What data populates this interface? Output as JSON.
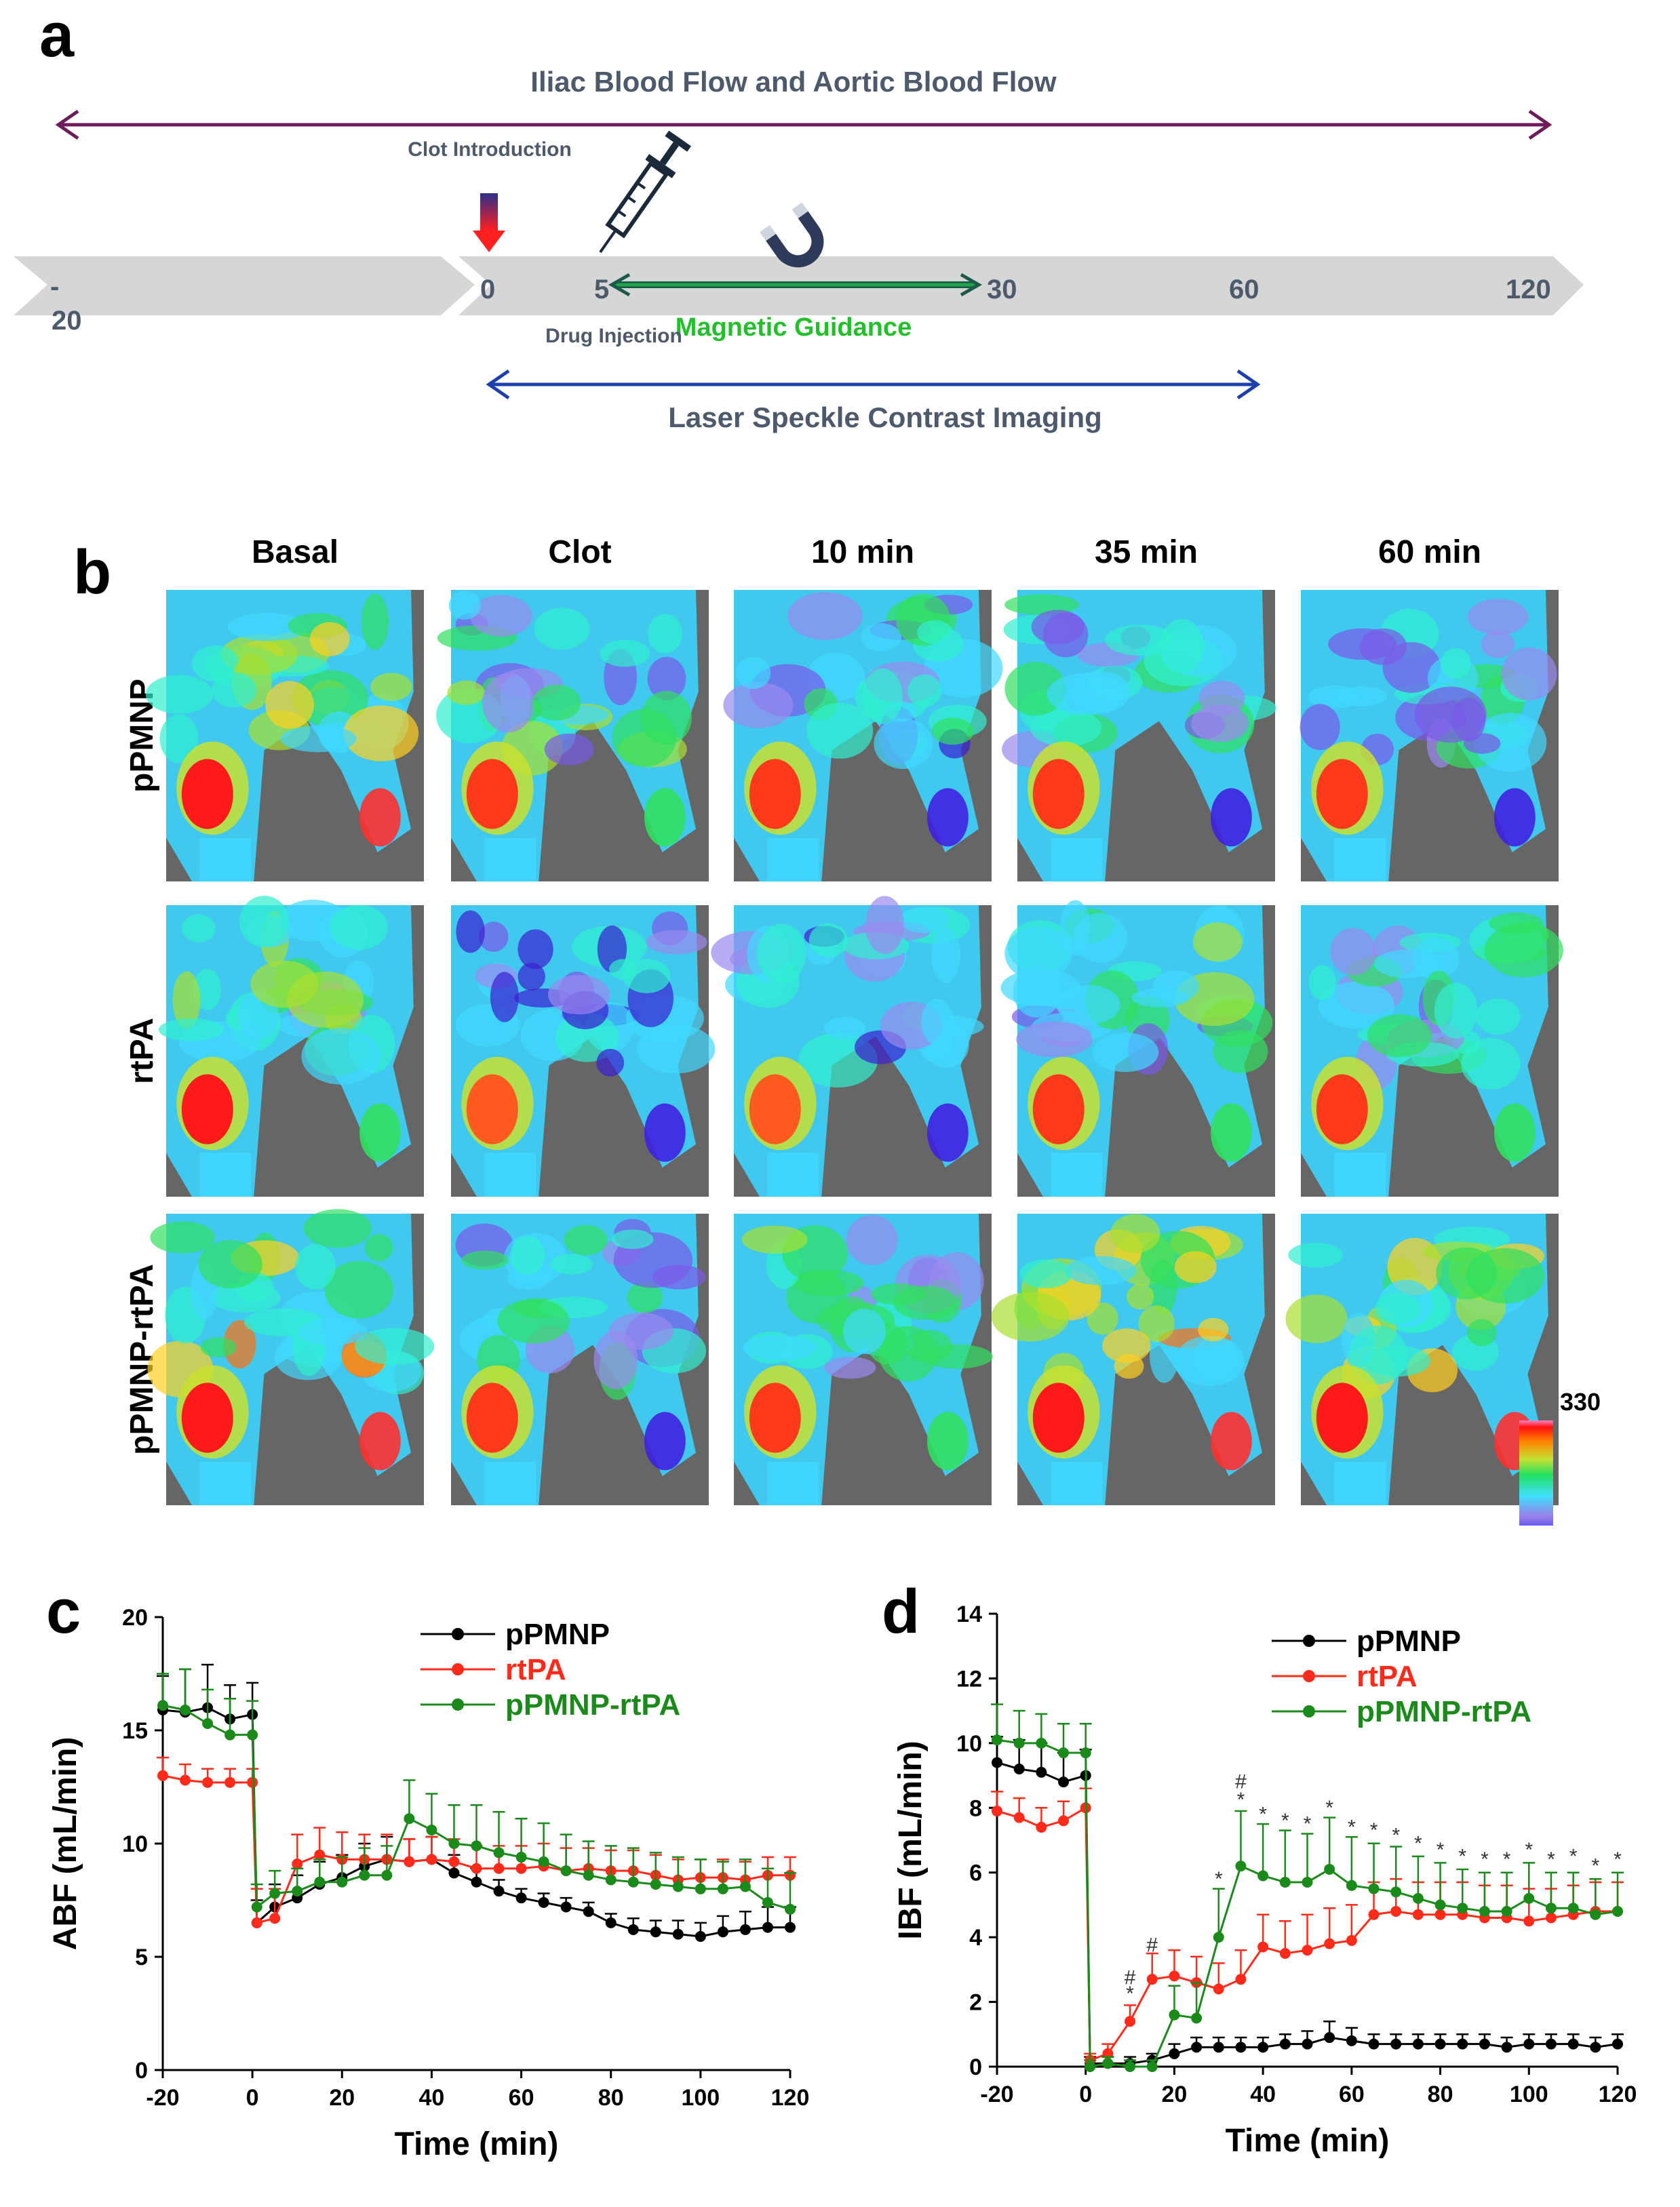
{
  "panels": {
    "a": "a",
    "b": "b",
    "c": "c",
    "d": "d"
  },
  "timeline": {
    "top_span_label": "Iliac Blood Flow and Aortic Blood Flow",
    "clot_label": "Clot Introduction",
    "drug_label": "Drug Injection",
    "magnet_label": "Magnetic Guidance",
    "lsci_label": "Laser Speckle Contrast Imaging",
    "ticks": [
      "-",
      "20",
      "0",
      "5",
      "30",
      "60",
      "120"
    ],
    "colors": {
      "top_arrow": "#6d1b5a",
      "lsci_arrow": "#1c3fae",
      "magnet_arrow": "#22a34a",
      "label": "#4d5a6b",
      "bar": "#d6d6d6"
    }
  },
  "imaging": {
    "columns": [
      "Basal",
      "Clot",
      "10 min",
      "35 min",
      "60 min"
    ],
    "rows": [
      "pPMNP",
      "rtPA",
      "pPMNP-rtPA"
    ],
    "colorbar": {
      "max": "330",
      "min": "0"
    },
    "perfusion_levels": [
      [
        0.85,
        0.55,
        0.45,
        0.5,
        0.5
      ],
      [
        0.7,
        0.3,
        0.35,
        0.55,
        0.6
      ],
      [
        0.9,
        0.5,
        0.55,
        0.85,
        0.85
      ]
    ]
  },
  "chart_data": [
    {
      "type": "line",
      "panel": "c",
      "xlabel": "Time (min)",
      "ylabel": "ABF (mL/min)",
      "xlim": [
        -20,
        120
      ],
      "ylim": [
        0,
        20
      ],
      "xticks": [
        -20,
        0,
        20,
        40,
        60,
        80,
        100,
        120
      ],
      "yticks": [
        0,
        5,
        10,
        15,
        20
      ],
      "x": [
        -20,
        -15,
        -10,
        -5,
        0,
        1,
        5,
        10,
        15,
        20,
        25,
        30,
        35,
        40,
        45,
        50,
        55,
        60,
        65,
        70,
        75,
        80,
        85,
        90,
        95,
        100,
        105,
        110,
        115,
        120
      ],
      "series": [
        {
          "name": "pPMNP",
          "color": "#000000",
          "values": [
            15.9,
            15.8,
            16.0,
            15.5,
            15.7,
            6.5,
            7.2,
            7.6,
            8.2,
            8.5,
            9.0,
            9.3,
            9.2,
            9.3,
            8.7,
            8.3,
            7.9,
            7.6,
            7.4,
            7.2,
            7.0,
            6.5,
            6.2,
            6.1,
            6.0,
            5.9,
            6.1,
            6.2,
            6.3,
            6.3
          ],
          "errors": [
            1.5,
            1.9,
            1.9,
            1.5,
            1.4,
            1.0,
            1.0,
            1.0,
            1.0,
            1.0,
            1.0,
            1.0,
            1.0,
            1.0,
            0.8,
            0.6,
            0.5,
            0.4,
            0.4,
            0.4,
            0.4,
            0.4,
            0.5,
            0.5,
            0.6,
            0.6,
            0.7,
            0.8,
            0.9,
            0.9
          ]
        },
        {
          "name": "rtPA",
          "color": "#ff2a1a",
          "values": [
            13.0,
            12.8,
            12.7,
            12.7,
            12.7,
            6.5,
            6.7,
            9.1,
            9.5,
            9.3,
            9.3,
            9.3,
            9.2,
            9.3,
            9.2,
            8.9,
            8.9,
            8.9,
            9.0,
            8.8,
            8.9,
            8.8,
            8.8,
            8.6,
            8.4,
            8.5,
            8.5,
            8.4,
            8.6,
            8.6
          ],
          "errors": [
            0.8,
            0.7,
            0.6,
            0.6,
            0.6,
            1.5,
            1.3,
            1.3,
            1.2,
            1.2,
            1.1,
            1.1,
            1.0,
            1.0,
            1.0,
            1.0,
            1.0,
            1.0,
            1.0,
            1.0,
            0.9,
            0.9,
            0.9,
            0.9,
            0.9,
            0.8,
            0.8,
            0.8,
            0.8,
            0.8
          ]
        },
        {
          "name": "pPMNP-rtPA",
          "color": "#1a8a1a",
          "values": [
            16.1,
            15.9,
            15.3,
            14.8,
            14.8,
            7.2,
            7.8,
            7.9,
            8.3,
            8.3,
            8.6,
            8.6,
            11.1,
            10.6,
            10.0,
            9.9,
            9.6,
            9.4,
            9.2,
            8.8,
            8.6,
            8.4,
            8.3,
            8.2,
            8.1,
            8.0,
            8.0,
            8.1,
            7.4,
            7.1
          ],
          "errors": [
            1.4,
            1.8,
            1.5,
            1.6,
            1.5,
            1.0,
            1.0,
            1.0,
            1.0,
            1.1,
            1.2,
            1.3,
            1.7,
            1.6,
            1.7,
            1.8,
            1.8,
            1.7,
            1.7,
            1.6,
            1.5,
            1.5,
            1.5,
            1.4,
            1.3,
            1.3,
            1.2,
            1.2,
            1.5,
            1.6
          ]
        }
      ]
    },
    {
      "type": "line",
      "panel": "d",
      "xlabel": "Time (min)",
      "ylabel": "IBF (mL/min)",
      "xlim": [
        -20,
        120
      ],
      "ylim": [
        0,
        14
      ],
      "xticks": [
        -20,
        0,
        20,
        40,
        60,
        80,
        100,
        120
      ],
      "yticks": [
        0,
        2,
        4,
        6,
        8,
        10,
        12,
        14
      ],
      "x": [
        -20,
        -15,
        -10,
        -5,
        0,
        1,
        5,
        10,
        15,
        20,
        25,
        30,
        35,
        40,
        45,
        50,
        55,
        60,
        65,
        70,
        75,
        80,
        85,
        90,
        95,
        100,
        105,
        110,
        115,
        120
      ],
      "series": [
        {
          "name": "pPMNP",
          "color": "#000000",
          "values": [
            9.4,
            9.2,
            9.1,
            8.8,
            9.0,
            0.1,
            0.1,
            0.1,
            0.2,
            0.4,
            0.6,
            0.6,
            0.6,
            0.6,
            0.7,
            0.7,
            0.9,
            0.8,
            0.7,
            0.7,
            0.7,
            0.7,
            0.7,
            0.7,
            0.6,
            0.7,
            0.7,
            0.7,
            0.6,
            0.7
          ],
          "errors": [
            0.8,
            0.9,
            0.9,
            0.9,
            0.8,
            0.2,
            0.2,
            0.2,
            0.2,
            0.3,
            0.3,
            0.3,
            0.3,
            0.3,
            0.3,
            0.4,
            0.5,
            0.4,
            0.3,
            0.3,
            0.3,
            0.3,
            0.3,
            0.3,
            0.3,
            0.3,
            0.3,
            0.3,
            0.3,
            0.3
          ]
        },
        {
          "name": "rtPA",
          "color": "#ff2a1a",
          "values": [
            7.9,
            7.7,
            7.4,
            7.6,
            8.0,
            0.2,
            0.4,
            1.4,
            2.7,
            2.8,
            2.6,
            2.4,
            2.7,
            3.7,
            3.5,
            3.6,
            3.8,
            3.9,
            4.7,
            4.8,
            4.7,
            4.7,
            4.7,
            4.6,
            4.6,
            4.5,
            4.6,
            4.7,
            4.8,
            4.8
          ],
          "errors": [
            0.6,
            0.6,
            0.6,
            0.6,
            0.6,
            0.2,
            0.3,
            0.5,
            0.8,
            0.8,
            0.8,
            0.8,
            0.9,
            1.0,
            1.0,
            1.1,
            1.1,
            1.1,
            1.0,
            1.0,
            1.0,
            1.0,
            1.0,
            1.0,
            1.0,
            1.0,
            0.9,
            0.9,
            0.9,
            0.9
          ]
        },
        {
          "name": "pPMNP-rtPA",
          "color": "#1a8a1a",
          "values": [
            10.1,
            10.0,
            10.0,
            9.7,
            9.7,
            0.0,
            0.1,
            0.0,
            0.0,
            1.6,
            1.5,
            4.0,
            6.2,
            5.9,
            5.7,
            5.7,
            6.1,
            5.6,
            5.5,
            5.4,
            5.2,
            5.0,
            4.9,
            4.8,
            4.8,
            5.2,
            4.9,
            4.9,
            4.7,
            4.8
          ],
          "errors": [
            1.1,
            1.0,
            0.9,
            0.9,
            0.9,
            0.2,
            0.2,
            0.2,
            0.2,
            0.9,
            1.1,
            1.5,
            1.7,
            1.6,
            1.6,
            1.5,
            1.6,
            1.5,
            1.4,
            1.4,
            1.3,
            1.3,
            1.2,
            1.2,
            1.2,
            1.1,
            1.1,
            1.1,
            1.1,
            1.2
          ]
        }
      ],
      "annotations": [
        {
          "x": 10,
          "y": 2.05,
          "text": "*"
        },
        {
          "x": 10,
          "y": 2.55,
          "text": "#"
        },
        {
          "x": 15,
          "y": 3.55,
          "text": "#"
        },
        {
          "x": 30,
          "y": 5.6,
          "text": "*"
        },
        {
          "x": 35,
          "y": 8.05,
          "text": "*"
        },
        {
          "x": 35,
          "y": 8.6,
          "text": "#"
        },
        {
          "x": 40,
          "y": 7.6,
          "text": "*"
        },
        {
          "x": 45,
          "y": 7.4,
          "text": "*"
        },
        {
          "x": 50,
          "y": 7.3,
          "text": "*"
        },
        {
          "x": 55,
          "y": 7.8,
          "text": "*"
        },
        {
          "x": 60,
          "y": 7.2,
          "text": "*"
        },
        {
          "x": 65,
          "y": 7.1,
          "text": "*"
        },
        {
          "x": 70,
          "y": 6.95,
          "text": "*"
        },
        {
          "x": 75,
          "y": 6.7,
          "text": "*"
        },
        {
          "x": 80,
          "y": 6.5,
          "text": "*"
        },
        {
          "x": 85,
          "y": 6.3,
          "text": "*"
        },
        {
          "x": 90,
          "y": 6.2,
          "text": "*"
        },
        {
          "x": 95,
          "y": 6.2,
          "text": "*"
        },
        {
          "x": 100,
          "y": 6.5,
          "text": "*"
        },
        {
          "x": 105,
          "y": 6.2,
          "text": "*"
        },
        {
          "x": 110,
          "y": 6.3,
          "text": "*"
        },
        {
          "x": 115,
          "y": 6.0,
          "text": "*"
        },
        {
          "x": 120,
          "y": 6.2,
          "text": "*"
        }
      ]
    }
  ]
}
